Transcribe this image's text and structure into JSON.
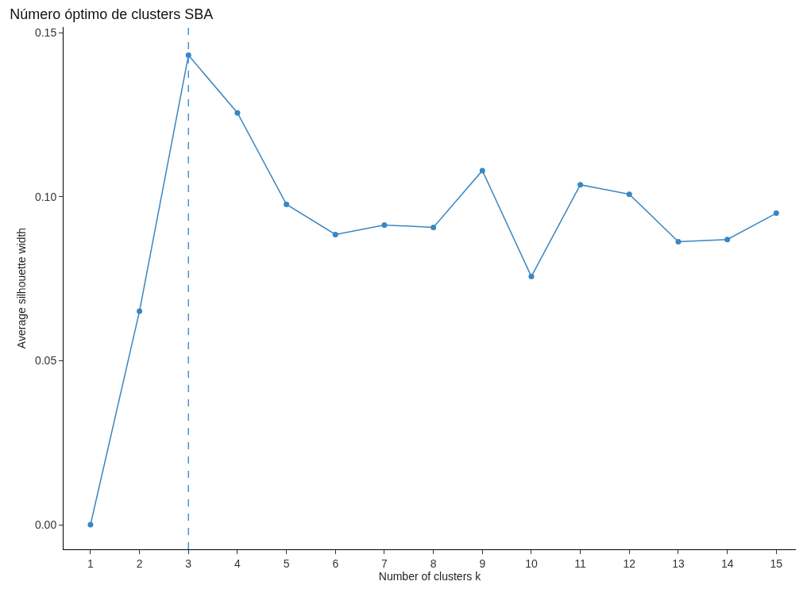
{
  "chart_data": {
    "type": "line",
    "title": "Número óptimo de clusters SBA",
    "xlabel": "Number of clusters k",
    "ylabel": "Average silhouette width",
    "x": [
      1,
      2,
      3,
      4,
      5,
      6,
      7,
      8,
      9,
      10,
      11,
      12,
      13,
      14,
      15
    ],
    "series": [
      {
        "color": "#3a86c1",
        "values": [
          0,
          0.0651,
          0.1432,
          0.1256,
          0.0977,
          0.0885,
          0.0914,
          0.0907,
          0.108,
          0.0757,
          0.1037,
          0.1008,
          0.0863,
          0.087,
          0.095
        ]
      }
    ],
    "xlim": [
      0.45,
      15.4
    ],
    "xticks": [
      1,
      2,
      3,
      4,
      5,
      6,
      7,
      8,
      9,
      10,
      11,
      12,
      13,
      14,
      15
    ],
    "ylim": [
      -0.0075,
      0.1518
    ],
    "yticks": [
      {
        "value": 0,
        "label": "0.00"
      },
      {
        "value": 0.05,
        "label": "0.05"
      },
      {
        "value": 0.1,
        "label": "0.10"
      },
      {
        "value": 0.15,
        "label": "0.15"
      }
    ],
    "ref_lines": [
      {
        "axis": "x",
        "value": 3,
        "color": "#4a90d9",
        "line_style": "dashed"
      }
    ],
    "grid": false,
    "marker": "circle",
    "line_style": "solid"
  }
}
